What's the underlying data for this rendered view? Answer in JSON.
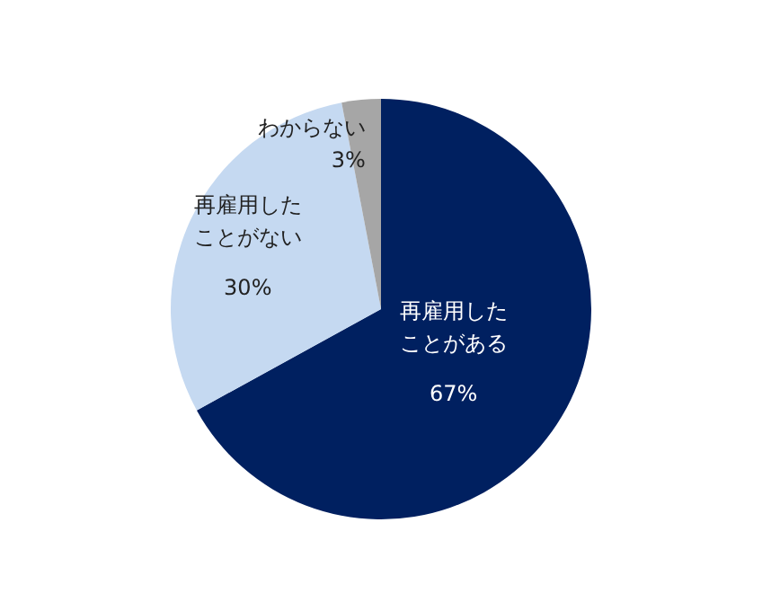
{
  "chart_data": {
    "type": "pie",
    "categories": [
      "再雇用したことがある",
      "再雇用したことがない",
      "わからない"
    ],
    "values": [
      67,
      30,
      3
    ],
    "colors": [
      "#002060",
      "#c5d9f1",
      "#a6a6a6"
    ],
    "value_labels": [
      "67%",
      "30%",
      "3%"
    ]
  }
}
